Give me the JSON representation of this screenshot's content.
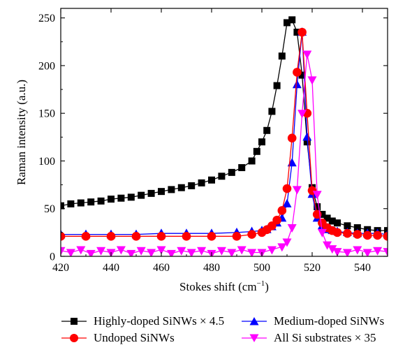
{
  "chart_data": {
    "type": "line",
    "xlabel": "Stokes shift (cm",
    "xlabel_sup": "−1",
    "xlabel_tail": ")",
    "ylabel": "Raman intensity (a.u.)",
    "xlim": [
      420,
      550
    ],
    "ylim": [
      0,
      260
    ],
    "x_ticks": [
      "420",
      "440",
      "460",
      "480",
      "500",
      "520",
      "540"
    ],
    "y_ticks": [
      "0",
      "50",
      "100",
      "150",
      "200",
      "250"
    ],
    "legend_position": "bottom",
    "series": [
      {
        "name": "Highly-doped SiNWs × 4.5",
        "color": "#000000",
        "marker": "square",
        "x": [
          420,
          424,
          428,
          432,
          436,
          440,
          444,
          448,
          452,
          456,
          460,
          464,
          468,
          472,
          476,
          480,
          484,
          488,
          492,
          496,
          498,
          500,
          502,
          504,
          506,
          508,
          510,
          512,
          514,
          516,
          518,
          520,
          522,
          524,
          526,
          528,
          530,
          534,
          538,
          542,
          546,
          550
        ],
        "values": [
          53,
          55,
          56,
          57,
          58,
          60,
          61,
          62,
          64,
          66,
          68,
          70,
          72,
          74,
          77,
          80,
          84,
          88,
          93,
          100,
          110,
          120,
          132,
          152,
          179,
          210,
          245,
          248,
          235,
          190,
          120,
          72,
          52,
          44,
          40,
          37,
          35,
          32,
          30,
          28,
          27,
          27
        ]
      },
      {
        "name": "Undoped SiNWs",
        "color": "#ff0000",
        "marker": "circle",
        "x": [
          420,
          430,
          440,
          450,
          460,
          470,
          480,
          490,
          496,
          500,
          502,
          504,
          506,
          508,
          510,
          512,
          514,
          516,
          518,
          520,
          522,
          524,
          526,
          528,
          530,
          534,
          538,
          542,
          546,
          550
        ],
        "values": [
          21,
          21,
          21,
          21,
          21,
          21,
          21,
          21,
          23,
          25,
          28,
          32,
          38,
          48,
          71,
          124,
          193,
          235,
          150,
          69,
          44,
          35,
          30,
          27,
          25,
          24,
          23,
          22,
          22,
          21
        ]
      },
      {
        "name": "Medium-doped SiNWs",
        "color": "#0000ff",
        "marker": "triangle-up",
        "x": [
          420,
          430,
          440,
          450,
          460,
          470,
          480,
          490,
          496,
          500,
          502,
          504,
          506,
          508,
          510,
          512,
          514,
          516,
          518,
          520,
          522,
          524,
          526,
          528,
          530,
          534,
          538,
          542,
          546,
          550
        ],
        "values": [
          23,
          23,
          23,
          23,
          24,
          24,
          24,
          25,
          26,
          27,
          28,
          31,
          35,
          40,
          55,
          98,
          180,
          235,
          125,
          65,
          40,
          32,
          28,
          27,
          26,
          25,
          24,
          24,
          24,
          23
        ]
      },
      {
        "name": "All Si substrates × 35",
        "color": "#ff00ff",
        "marker": "triangle-down",
        "x": [
          420,
          424,
          428,
          432,
          436,
          440,
          444,
          448,
          452,
          456,
          460,
          464,
          468,
          472,
          476,
          480,
          484,
          488,
          492,
          496,
          500,
          504,
          508,
          510,
          512,
          514,
          516,
          518,
          520,
          522,
          524,
          526,
          528,
          530,
          534,
          538,
          542,
          546,
          550
        ],
        "values": [
          6,
          4,
          7,
          3,
          6,
          4,
          7,
          3,
          6,
          4,
          7,
          3,
          6,
          4,
          6,
          3,
          6,
          4,
          7,
          4,
          4,
          7,
          10,
          15,
          30,
          70,
          150,
          212,
          185,
          65,
          25,
          12,
          8,
          5,
          4,
          7,
          4,
          6,
          5
        ]
      }
    ]
  }
}
